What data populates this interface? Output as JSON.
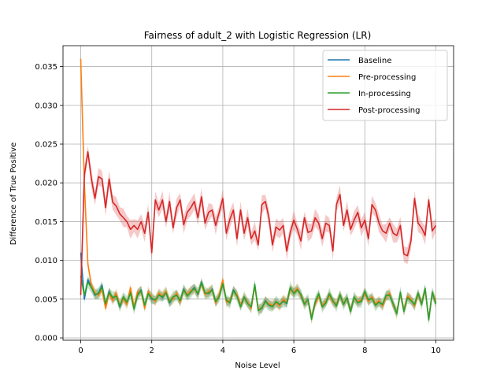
{
  "chart_data": {
    "type": "line",
    "title": "Fairness of adult_2 with Logistic Regression (LR)",
    "xlabel": "Noise Level",
    "ylabel": "Difference of True Positive",
    "xlim": [
      -0.5,
      10.5
    ],
    "ylim": [
      -0.0003,
      0.0377
    ],
    "xticks": [
      0,
      2,
      4,
      6,
      8,
      10
    ],
    "yticks": [
      0.0,
      0.005,
      0.01,
      0.015,
      0.02,
      0.025,
      0.03,
      0.035
    ],
    "ytick_labels": [
      "0.000",
      "0.005",
      "0.010",
      "0.015",
      "0.020",
      "0.025",
      "0.030",
      "0.035"
    ],
    "grid": true,
    "legend_position": "top-right",
    "series": [
      {
        "name": "Baseline",
        "color": "#1f77b4",
        "band": 0.0006,
        "x": [
          0,
          0.1,
          0.2,
          0.3,
          0.4,
          0.5,
          0.6,
          0.7,
          0.8,
          0.9,
          1.0,
          1.1,
          1.2,
          1.3,
          1.4,
          1.5,
          1.6,
          1.7,
          1.8,
          1.9,
          2.0,
          2.1,
          2.2,
          2.3,
          2.4,
          2.5,
          2.6,
          2.7,
          2.8,
          2.9,
          3.0,
          3.1,
          3.2,
          3.3,
          3.4,
          3.5,
          3.6,
          3.7,
          3.8,
          3.9,
          4.0,
          4.1,
          4.2,
          4.3,
          4.4,
          4.5,
          4.6,
          4.7,
          4.8,
          4.9,
          5.0,
          5.1,
          5.2,
          5.3,
          5.4,
          5.5,
          5.6,
          5.7,
          5.8,
          5.9,
          6.0,
          6.1,
          6.2,
          6.3,
          6.4,
          6.5,
          6.6,
          6.7,
          6.8,
          6.9,
          7.0,
          7.1,
          7.2,
          7.3,
          7.4,
          7.5,
          7.6,
          7.7,
          7.8,
          7.9,
          8.0,
          8.1,
          8.2,
          8.3,
          8.4,
          8.5,
          8.6,
          8.7,
          8.8,
          8.9,
          9.0,
          9.1,
          9.2,
          9.3,
          9.4,
          9.5,
          9.6,
          9.7,
          9.8,
          9.9,
          10.0
        ],
        "values": [
          0.011,
          0.005,
          0.0075,
          0.0066,
          0.0055,
          0.0058,
          0.0068,
          0.0042,
          0.006,
          0.005,
          0.0055,
          0.004,
          0.0052,
          0.0045,
          0.006,
          0.0038,
          0.0056,
          0.0062,
          0.0041,
          0.0058,
          0.005,
          0.0048,
          0.0056,
          0.0052,
          0.0059,
          0.0045,
          0.0052,
          0.0056,
          0.0047,
          0.0063,
          0.0055,
          0.006,
          0.0065,
          0.0056,
          0.0072,
          0.0057,
          0.0058,
          0.0063,
          0.0046,
          0.0054,
          0.0072,
          0.0048,
          0.0046,
          0.0062,
          0.0055,
          0.0041,
          0.0052,
          0.0045,
          0.0039,
          0.0068,
          0.0036,
          0.0038,
          0.0048,
          0.0043,
          0.0041,
          0.0046,
          0.0042,
          0.0048,
          0.0044,
          0.0064,
          0.0058,
          0.0063,
          0.0055,
          0.0044,
          0.0049,
          0.0025,
          0.0045,
          0.0056,
          0.0041,
          0.0046,
          0.0056,
          0.0047,
          0.0042,
          0.0055,
          0.0044,
          0.0051,
          0.0035,
          0.0052,
          0.0046,
          0.0048,
          0.0059,
          0.0048,
          0.0052,
          0.0043,
          0.0047,
          0.0042,
          0.0054,
          0.0056,
          0.0043,
          0.0032,
          0.0058,
          0.0035,
          0.0053,
          0.0049,
          0.0042,
          0.0057,
          0.0044,
          0.0063,
          0.0024,
          0.0058,
          0.0045
        ]
      },
      {
        "name": "Pre-processing",
        "color": "#ff7f0e",
        "band": 0.0007,
        "x": [
          0,
          0.1,
          0.2,
          0.3,
          0.4,
          0.5,
          0.6,
          0.7,
          0.8,
          0.9,
          1.0,
          1.1,
          1.2,
          1.3,
          1.4,
          1.5,
          1.6,
          1.7,
          1.8,
          1.9,
          2.0,
          2.1,
          2.2,
          2.3,
          2.4,
          2.5,
          2.6,
          2.7,
          2.8,
          2.9,
          3.0,
          3.1,
          3.2,
          3.3,
          3.4,
          3.5,
          3.6,
          3.7,
          3.8,
          3.9,
          4.0,
          4.1,
          4.2,
          4.3,
          4.4,
          4.5,
          4.6,
          4.7,
          4.8,
          4.9,
          5.0,
          5.1,
          5.2,
          5.3,
          5.4,
          5.5,
          5.6,
          5.7,
          5.8,
          5.9,
          6.0,
          6.1,
          6.2,
          6.3,
          6.4,
          6.5,
          6.6,
          6.7,
          6.8,
          6.9,
          7.0,
          7.1,
          7.2,
          7.3,
          7.4,
          7.5,
          7.6,
          7.7,
          7.8,
          7.9,
          8.0,
          8.1,
          8.2,
          8.3,
          8.4,
          8.5,
          8.6,
          8.7,
          8.8,
          8.9,
          9.0,
          9.1,
          9.2,
          9.3,
          9.4,
          9.5,
          9.6,
          9.7,
          9.8,
          9.9,
          10.0
        ],
        "values": [
          0.036,
          0.02,
          0.0095,
          0.0068,
          0.0058,
          0.0055,
          0.0062,
          0.0038,
          0.0058,
          0.0048,
          0.0058,
          0.0042,
          0.005,
          0.0043,
          0.0065,
          0.004,
          0.006,
          0.006,
          0.0038,
          0.006,
          0.0052,
          0.0047,
          0.0058,
          0.0054,
          0.006,
          0.0047,
          0.005,
          0.0058,
          0.0046,
          0.0062,
          0.0056,
          0.0061,
          0.0063,
          0.0057,
          0.007,
          0.0056,
          0.006,
          0.0062,
          0.0045,
          0.0056,
          0.0075,
          0.0046,
          0.0048,
          0.006,
          0.0056,
          0.0043,
          0.0052,
          0.0046,
          0.0038,
          0.0067,
          0.0037,
          0.0039,
          0.0047,
          0.0044,
          0.0042,
          0.0045,
          0.0041,
          0.005,
          0.0046,
          0.0062,
          0.0059,
          0.0064,
          0.0054,
          0.0045,
          0.0048,
          0.0027,
          0.0043,
          0.0054,
          0.0042,
          0.0047,
          0.0055,
          0.0046,
          0.0044,
          0.0054,
          0.0045,
          0.005,
          0.0036,
          0.0051,
          0.0047,
          0.0049,
          0.0058,
          0.0047,
          0.0053,
          0.0044,
          0.0048,
          0.0041,
          0.0053,
          0.0058,
          0.0042,
          0.0033,
          0.0057,
          0.0036,
          0.0054,
          0.005,
          0.0041,
          0.0056,
          0.0045,
          0.0062,
          0.0025,
          0.0057,
          0.0047
        ]
      },
      {
        "name": "In-processing",
        "color": "#2ca02c",
        "band": 0.0008,
        "x": [
          0,
          0.1,
          0.2,
          0.3,
          0.4,
          0.5,
          0.6,
          0.7,
          0.8,
          0.9,
          1.0,
          1.1,
          1.2,
          1.3,
          1.4,
          1.5,
          1.6,
          1.7,
          1.8,
          1.9,
          2.0,
          2.1,
          2.2,
          2.3,
          2.4,
          2.5,
          2.6,
          2.7,
          2.8,
          2.9,
          3.0,
          3.1,
          3.2,
          3.3,
          3.4,
          3.5,
          3.6,
          3.7,
          3.8,
          3.9,
          4.0,
          4.1,
          4.2,
          4.3,
          4.4,
          4.5,
          4.6,
          4.7,
          4.8,
          4.9,
          5.0,
          5.1,
          5.2,
          5.3,
          5.4,
          5.5,
          5.6,
          5.7,
          5.8,
          5.9,
          6.0,
          6.1,
          6.2,
          6.3,
          6.4,
          6.5,
          6.6,
          6.7,
          6.8,
          6.9,
          7.0,
          7.1,
          7.2,
          7.3,
          7.4,
          7.5,
          7.6,
          7.7,
          7.8,
          7.9,
          8.0,
          8.1,
          8.2,
          8.3,
          8.4,
          8.5,
          8.6,
          8.7,
          8.8,
          8.9,
          9.0,
          9.1,
          9.2,
          9.3,
          9.4,
          9.5,
          9.6,
          9.7,
          9.8,
          9.9,
          10.0
        ],
        "values": [
          0.008,
          0.0055,
          0.0072,
          0.0065,
          0.0056,
          0.0057,
          0.0066,
          0.0044,
          0.0059,
          0.0052,
          0.0054,
          0.0041,
          0.0053,
          0.0046,
          0.0058,
          0.0037,
          0.0055,
          0.0061,
          0.0042,
          0.0057,
          0.0051,
          0.0049,
          0.0055,
          0.0053,
          0.0058,
          0.0046,
          0.0053,
          0.0055,
          0.0048,
          0.0062,
          0.0054,
          0.0059,
          0.0064,
          0.0057,
          0.0071,
          0.0058,
          0.0057,
          0.0062,
          0.0047,
          0.0053,
          0.007,
          0.0049,
          0.0045,
          0.0061,
          0.0054,
          0.004,
          0.0053,
          0.0044,
          0.004,
          0.0069,
          0.0035,
          0.0039,
          0.0047,
          0.0042,
          0.004,
          0.0047,
          0.0043,
          0.0047,
          0.0045,
          0.0065,
          0.0057,
          0.0062,
          0.0056,
          0.0043,
          0.005,
          0.0024,
          0.0046,
          0.0057,
          0.004,
          0.0045,
          0.0057,
          0.0048,
          0.0041,
          0.0056,
          0.0043,
          0.0052,
          0.0034,
          0.0053,
          0.0045,
          0.0047,
          0.006,
          0.0049,
          0.0051,
          0.0042,
          0.0046,
          0.0043,
          0.0055,
          0.0055,
          0.0044,
          0.0031,
          0.0059,
          0.0034,
          0.0052,
          0.0048,
          0.0043,
          0.0058,
          0.0043,
          0.0064,
          0.0023,
          0.0059,
          0.0044
        ]
      },
      {
        "name": "Post-processing",
        "color": "#d62728",
        "band": 0.0012,
        "x": [
          0,
          0.1,
          0.2,
          0.3,
          0.4,
          0.5,
          0.6,
          0.7,
          0.8,
          0.9,
          1.0,
          1.1,
          1.2,
          1.3,
          1.4,
          1.5,
          1.6,
          1.7,
          1.8,
          1.9,
          2.0,
          2.1,
          2.2,
          2.3,
          2.4,
          2.5,
          2.6,
          2.7,
          2.8,
          2.9,
          3.0,
          3.1,
          3.2,
          3.3,
          3.4,
          3.5,
          3.6,
          3.7,
          3.8,
          3.9,
          4.0,
          4.1,
          4.2,
          4.3,
          4.4,
          4.5,
          4.6,
          4.7,
          4.8,
          4.9,
          5.0,
          5.1,
          5.2,
          5.3,
          5.4,
          5.5,
          5.6,
          5.7,
          5.8,
          5.9,
          6.0,
          6.1,
          6.2,
          6.3,
          6.4,
          6.5,
          6.6,
          6.7,
          6.8,
          6.9,
          7.0,
          7.1,
          7.2,
          7.3,
          7.4,
          7.5,
          7.6,
          7.7,
          7.8,
          7.9,
          8.0,
          8.1,
          8.2,
          8.3,
          8.4,
          8.5,
          8.6,
          8.7,
          8.8,
          8.9,
          9.0,
          9.1,
          9.2,
          9.3,
          9.4,
          9.5,
          9.6,
          9.7,
          9.8,
          9.9,
          10.0
        ],
        "values": [
          0.0055,
          0.021,
          0.024,
          0.0205,
          0.018,
          0.0208,
          0.0205,
          0.0168,
          0.0205,
          0.0175,
          0.017,
          0.016,
          0.0155,
          0.015,
          0.014,
          0.0145,
          0.014,
          0.015,
          0.0135,
          0.0162,
          0.011,
          0.0178,
          0.0165,
          0.0178,
          0.015,
          0.0176,
          0.0142,
          0.0168,
          0.0178,
          0.0146,
          0.0162,
          0.0168,
          0.0176,
          0.0155,
          0.0182,
          0.0148,
          0.0162,
          0.0165,
          0.0145,
          0.0162,
          0.018,
          0.0135,
          0.0153,
          0.0165,
          0.0128,
          0.0165,
          0.0135,
          0.0155,
          0.0128,
          0.0138,
          0.012,
          0.0172,
          0.0176,
          0.0155,
          0.012,
          0.0143,
          0.0139,
          0.0145,
          0.0112,
          0.0136,
          0.0152,
          0.014,
          0.0125,
          0.0155,
          0.0136,
          0.0138,
          0.0155,
          0.0148,
          0.0128,
          0.0148,
          0.0145,
          0.0112,
          0.0172,
          0.0185,
          0.0145,
          0.0165,
          0.014,
          0.0152,
          0.0162,
          0.0142,
          0.0152,
          0.0128,
          0.0172,
          0.0165,
          0.0148,
          0.0138,
          0.0135,
          0.0148,
          0.0135,
          0.0132,
          0.0145,
          0.0108,
          0.0106,
          0.0125,
          0.018,
          0.0148,
          0.0142,
          0.0132,
          0.0178,
          0.0138,
          0.0145
        ]
      }
    ]
  }
}
